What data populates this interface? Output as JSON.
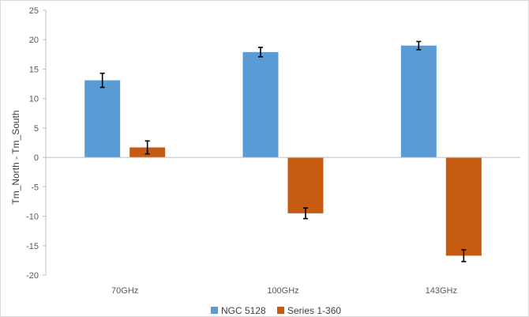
{
  "chart_data": {
    "type": "bar",
    "categories": [
      "70GHz",
      "100GHz",
      "143GHz"
    ],
    "series": [
      {
        "name": "NGC 5128",
        "color": "#5b9bd5",
        "values": [
          13.1,
          17.9,
          19.0
        ],
        "errors": [
          1.2,
          0.8,
          0.7
        ]
      },
      {
        "name": "Series 1-360",
        "color": "#c55a11",
        "values": [
          1.7,
          -9.5,
          -16.7
        ],
        "errors": [
          1.1,
          0.9,
          1.0
        ]
      }
    ],
    "xlabel": "",
    "ylabel": "Tm_North - Tm_South",
    "ylim": [
      -20,
      25
    ],
    "yticks": [
      25,
      20,
      15,
      10,
      5,
      0,
      -5,
      -10,
      -15,
      -20
    ],
    "grid": false,
    "legend": "bottom"
  }
}
